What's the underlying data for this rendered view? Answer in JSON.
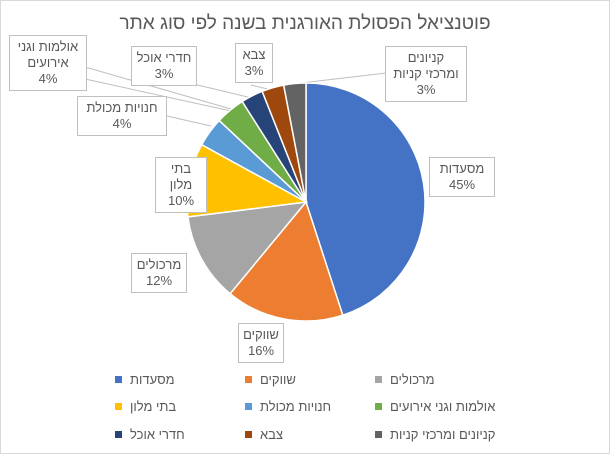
{
  "chart_data": {
    "type": "pie",
    "title": "פוטנציאל הפסולת האורגנית בשנה לפי סוג אתר",
    "categories": [
      "מסעדות",
      "שווקים",
      "מרכולים",
      "בתי מלון",
      "חנויות מכולת",
      "אולמות וגני אירועים",
      "חדרי אוכל",
      "צבא",
      "קניונים ומרכזי קניות"
    ],
    "values": [
      45,
      16,
      12,
      10,
      4,
      4,
      3,
      3,
      3
    ],
    "data_labels": [
      "45%",
      "16%",
      "12%",
      "10%",
      "4%",
      "4%",
      "3%",
      "3%",
      "3%"
    ],
    "colors": [
      "#4472c4",
      "#ed7d31",
      "#a5a5a5",
      "#ffc000",
      "#5b9bd5",
      "#70ad47",
      "#264478",
      "#9e480e",
      "#636363"
    ],
    "legend_position": "bottom"
  }
}
